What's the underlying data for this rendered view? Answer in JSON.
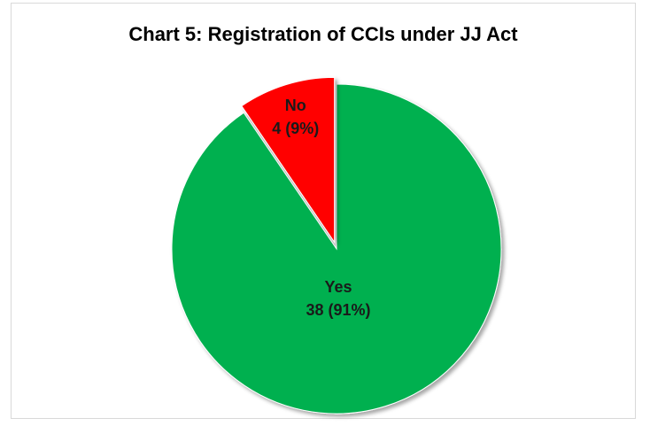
{
  "chart_data": {
    "type": "pie",
    "title": "Chart 5: Registration of CCIs under JJ Act",
    "slices": [
      {
        "label": "Yes",
        "value": 38,
        "percent": "91%",
        "display": "38 (91%)",
        "color": "#00b050",
        "exploded": false
      },
      {
        "label": "No",
        "value": 4,
        "percent": "9%",
        "display": "4 (9%)",
        "color": "#ff0000",
        "exploded": true
      }
    ],
    "legend": "none"
  }
}
